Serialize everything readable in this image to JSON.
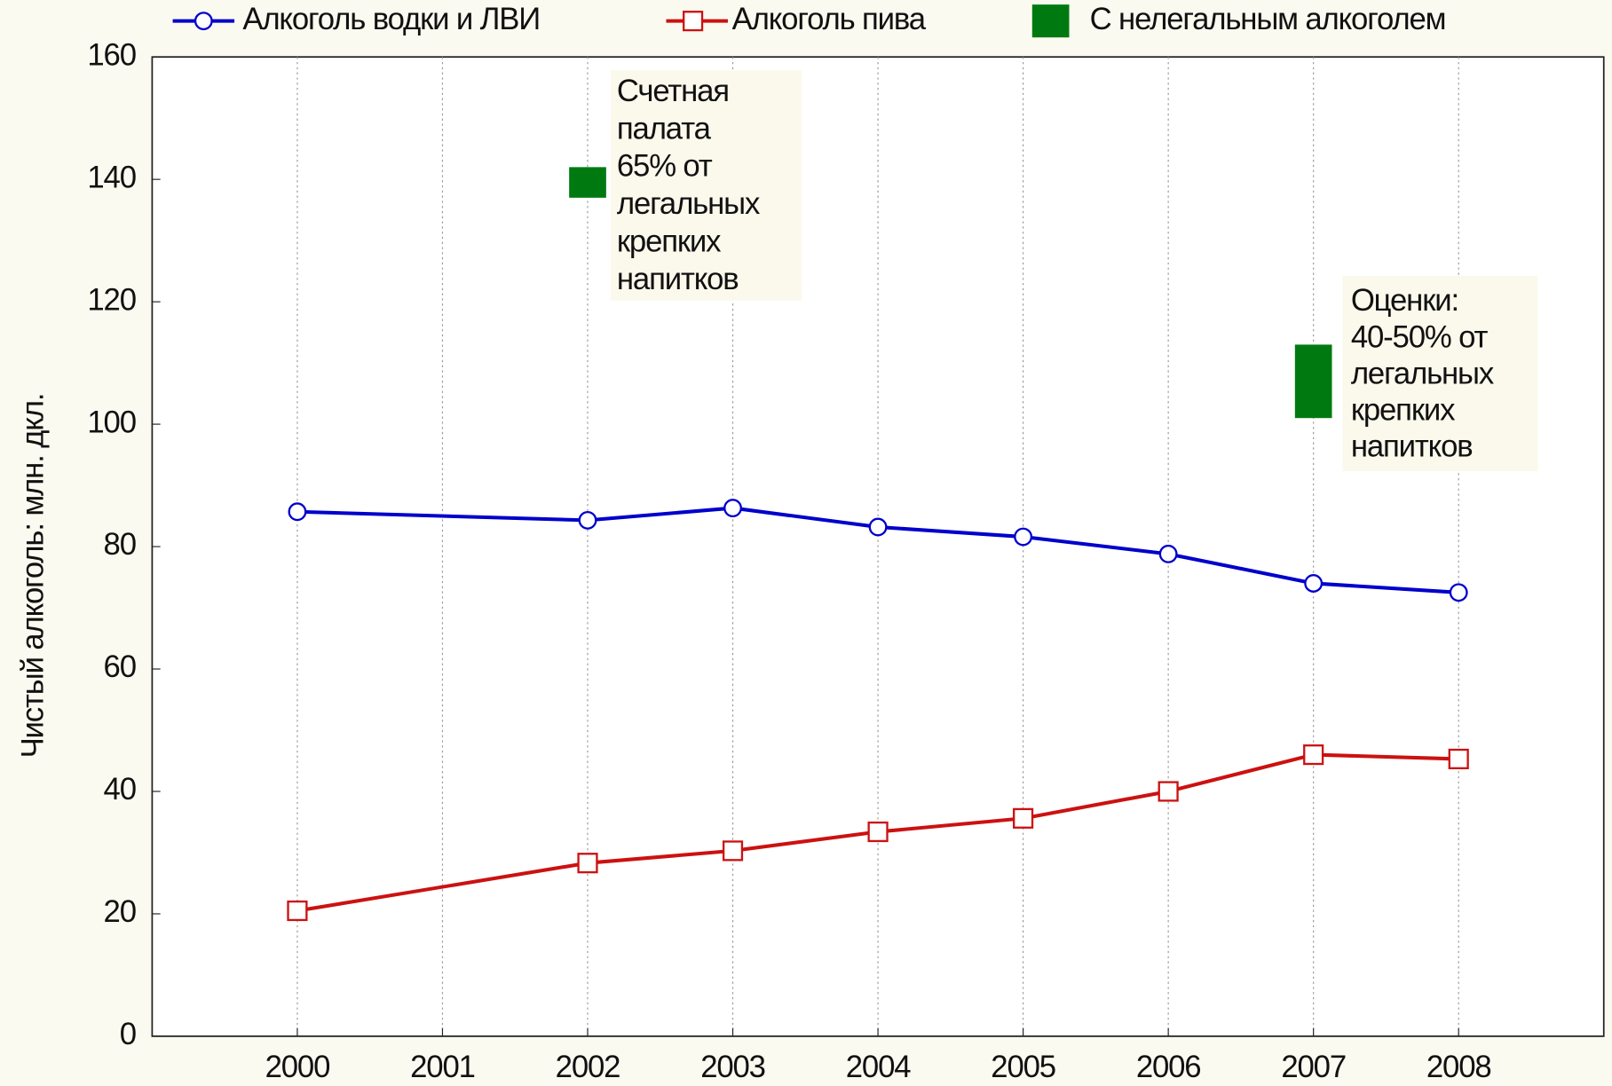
{
  "chart_data": {
    "type": "line",
    "ylabel": "Чистый  алкоголь: млн. дкл.",
    "xlim": [
      1999,
      2009
    ],
    "xticks": [
      2000,
      2001,
      2002,
      2003,
      2004,
      2005,
      2006,
      2007,
      2008
    ],
    "ylim": [
      0,
      160
    ],
    "yticks": [
      0,
      20,
      40,
      60,
      80,
      100,
      120,
      140,
      160
    ],
    "grid": "x",
    "series": [
      {
        "name": "Алкоголь водки и ЛВИ",
        "color": "#0000cc",
        "marker": "circle",
        "x": [
          2000,
          2002,
          2003,
          2004,
          2005,
          2006,
          2007,
          2008
        ],
        "values": [
          85.7,
          84.3,
          86.3,
          83.2,
          81.6,
          78.8,
          74,
          72.5
        ]
      },
      {
        "name": "Алкоголь   пива",
        "color": "#cc1111",
        "marker": "square",
        "x": [
          2000,
          2002,
          2003,
          2004,
          2005,
          2006,
          2007,
          2008
        ],
        "values": [
          20.5,
          28.3,
          30.3,
          33.4,
          35.6,
          40,
          46,
          45.3
        ]
      }
    ],
    "ranges": {
      "name": "С нелегальным алкоголем",
      "color": "#007a10",
      "x": [
        2002,
        2007
      ],
      "low": [
        137,
        101
      ],
      "high": [
        142,
        113
      ]
    },
    "annotations": [
      {
        "lines": [
          "Счетная",
          "палата",
          "65% от",
          "легальных",
          "крепких",
          "напитков"
        ]
      },
      {
        "lines": [
          "Оценки:",
          "40-50% от",
          "легальных",
          "крепких",
          "напитков"
        ]
      }
    ]
  }
}
